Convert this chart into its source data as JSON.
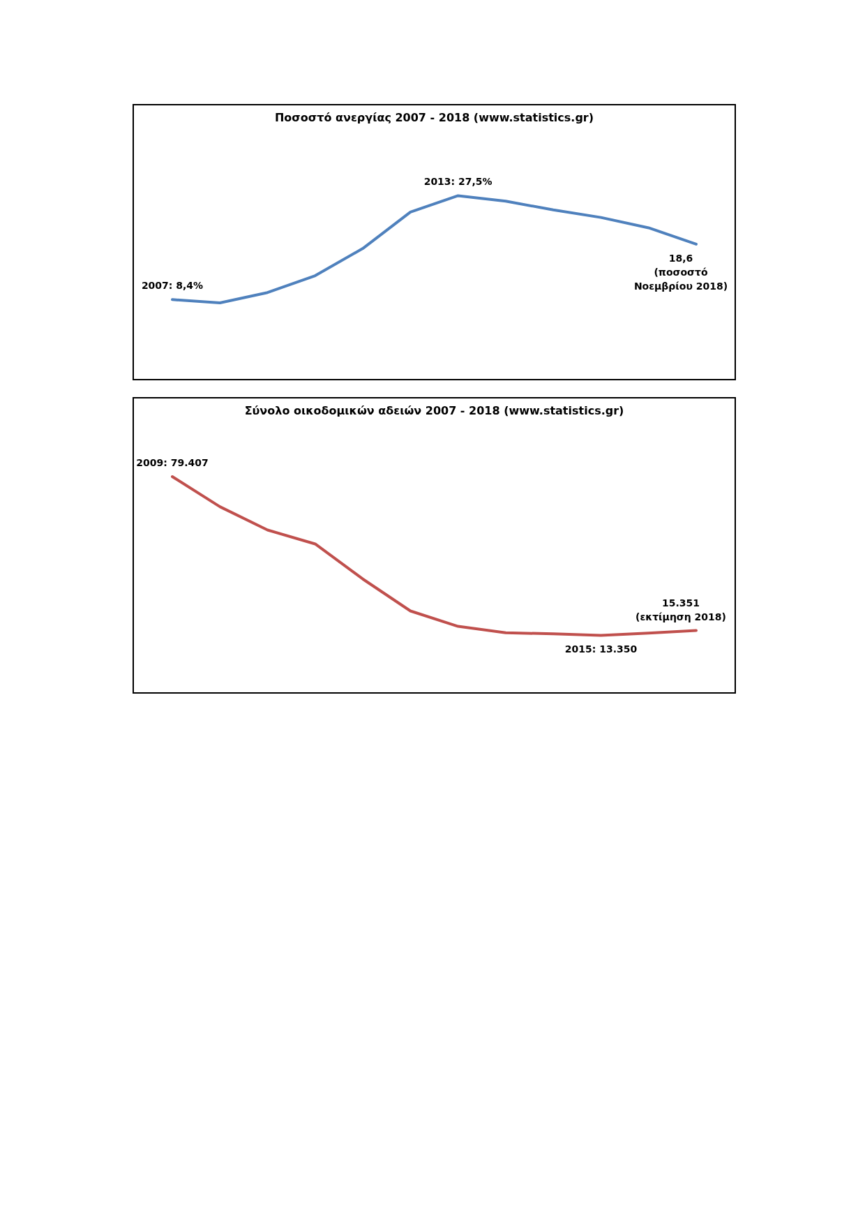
{
  "chart_data": [
    {
      "type": "line",
      "title": "Ποσοστό ανεργίας 2007 - 2018 (www.statistics.gr)",
      "categories": [
        null,
        null,
        null,
        null,
        null,
        null,
        null,
        null,
        null,
        null,
        null,
        null
      ],
      "marker": "none",
      "series": [
        {
          "color": "#4f81bd",
          "values": [
            8.4,
            7.8,
            9.7,
            12.8,
            17.8,
            24.5,
            27.5,
            26.5,
            24.9,
            23.5,
            21.6,
            18.6
          ],
          "value_labels": [
            "2007: 8,4%",
            null,
            null,
            null,
            null,
            null,
            "2013: 27,5%",
            null,
            null,
            null,
            null,
            "18,6\n(ποσοστό\nΝοεμβρίου 2018)"
          ]
        }
      ]
    },
    {
      "type": "line",
      "title": "Σύνολο οικοδομικών αδειών 2007 - 2018 (www.statistics.gr)",
      "categories": [
        null,
        null,
        null,
        null,
        null,
        null,
        null,
        null,
        null,
        null,
        null,
        null
      ],
      "marker": "none",
      "series": [
        {
          "color": "#c0504d",
          "values": [
            79407,
            66900,
            57200,
            51400,
            36800,
            23500,
            17100,
            14400,
            14000,
            13350,
            14300,
            15351
          ],
          "value_labels": [
            "2009: 79.407",
            null,
            null,
            null,
            null,
            null,
            null,
            null,
            null,
            "2015: 13.350",
            null,
            "15.351\n(εκτίμηση 2018)"
          ]
        }
      ]
    }
  ]
}
